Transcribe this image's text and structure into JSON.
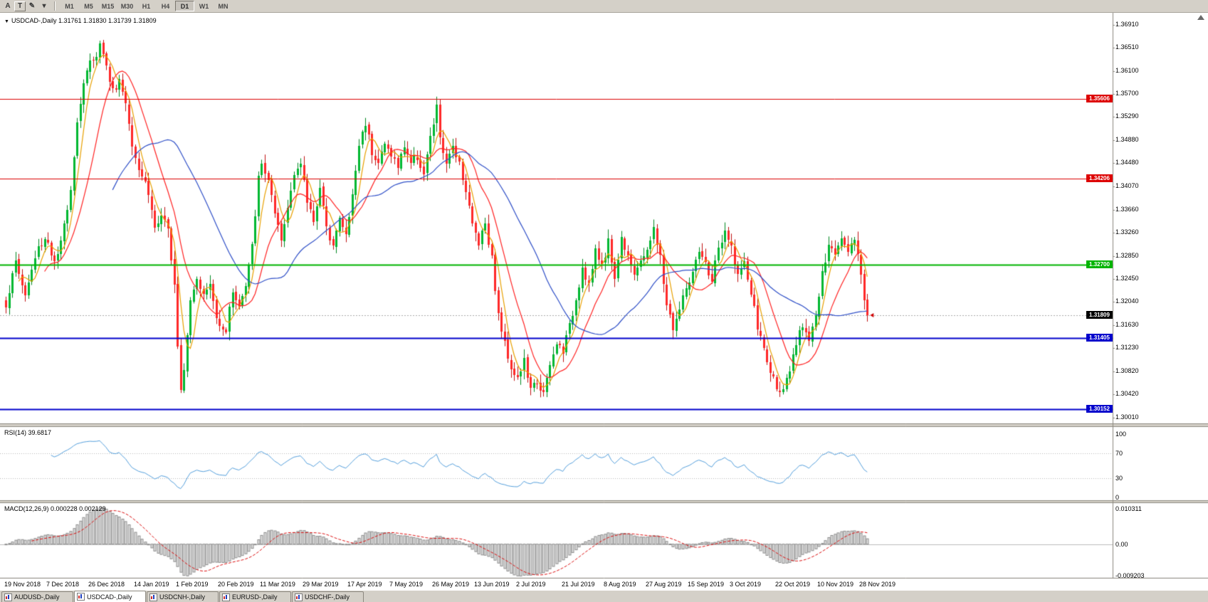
{
  "toolbar": {
    "icons": [
      {
        "name": "arrow-tool-icon",
        "glyph": "A",
        "boxed": false
      },
      {
        "name": "text-tool-icon",
        "glyph": "T",
        "boxed": true
      },
      {
        "name": "draw-tool-icon",
        "glyph": "✎",
        "boxed": false
      },
      {
        "name": "dropdown-icon",
        "glyph": "▾",
        "boxed": false
      }
    ],
    "timeframes": [
      "M1",
      "M5",
      "M15",
      "M30",
      "H1",
      "H4",
      "D1",
      "W1",
      "MN"
    ],
    "active_timeframe": "D1"
  },
  "chart": {
    "symbol_marker": "▼",
    "symbol_period": "USDCAD-,Daily",
    "ohlc": "1.31761 1.31830 1.31739 1.31809"
  },
  "price_axis": {
    "labels": [
      "1.36910",
      "1.36510",
      "1.36100",
      "1.35700",
      "1.35290",
      "1.34880",
      "1.34480",
      "1.34070",
      "1.33660",
      "1.33260",
      "1.32850",
      "1.32450",
      "1.32040",
      "1.31630",
      "1.31230",
      "1.30820",
      "1.30420",
      "1.30010"
    ]
  },
  "levels": [
    {
      "value": 1.35606,
      "label": "1.35606",
      "color": "#dd0000",
      "line_width": 1
    },
    {
      "value": 1.34206,
      "label": "1.34206",
      "color": "#dd0000",
      "line_width": 1
    },
    {
      "value": 1.327,
      "label": "1.32700",
      "color": "#00b400",
      "line_width": 2
    },
    {
      "value": 1.31405,
      "label": "1.31405",
      "color": "#0000cc",
      "line_width": 2
    },
    {
      "value": 1.30152,
      "label": "1.30152",
      "color": "#0000cc",
      "line_width": 2
    }
  ],
  "current_price": {
    "value": 1.31809,
    "label": "1.31809",
    "color": "#000000"
  },
  "time_axis": [
    {
      "text": "19 Nov 2018",
      "index": 0
    },
    {
      "text": "7 Dec 2018",
      "index": 13
    },
    {
      "text": "26 Dec 2018",
      "index": 26
    },
    {
      "text": "14 Jan 2019",
      "index": 40
    },
    {
      "text": "1 Feb 2019",
      "index": 53
    },
    {
      "text": "20 Feb 2019",
      "index": 66
    },
    {
      "text": "11 Mar 2019",
      "index": 79
    },
    {
      "text": "29 Mar 2019",
      "index": 92
    },
    {
      "text": "17 Apr 2019",
      "index": 106
    },
    {
      "text": "7 May 2019",
      "index": 119
    },
    {
      "text": "26 May 2019",
      "index": 132
    },
    {
      "text": "13 Jun 2019",
      "index": 145
    },
    {
      "text": "2 Jul 2019",
      "index": 158
    },
    {
      "text": "21 Jul 2019",
      "index": 172
    },
    {
      "text": "8 Aug 2019",
      "index": 185
    },
    {
      "text": "27 Aug 2019",
      "index": 198
    },
    {
      "text": "15 Sep 2019",
      "index": 211
    },
    {
      "text": "3 Oct 2019",
      "index": 224
    },
    {
      "text": "22 Oct 2019",
      "index": 238
    },
    {
      "text": "10 Nov 2019",
      "index": 251
    },
    {
      "text": "28 Nov 2019",
      "index": 264
    }
  ],
  "rsi": {
    "title": "RSI(14)",
    "value": "39.6817",
    "line_color": "#55a0dd",
    "level_lines": [
      30,
      70
    ],
    "scale": [
      {
        "text": "100",
        "value": 100
      },
      {
        "text": "70",
        "value": 70
      },
      {
        "text": "30",
        "value": 30
      },
      {
        "text": "0",
        "value": 0
      }
    ]
  },
  "macd": {
    "title": "MACD(12,26,9)",
    "values": "0.000228 0.002129",
    "bar_fill": "#e2e2e2",
    "bar_stroke": "#8c8c8c",
    "signal_color": "#dd1010",
    "scale": [
      {
        "text": "0.010311",
        "value": 0.010311
      },
      {
        "text": "0.00",
        "value": 0
      },
      {
        "text": "-0.009203",
        "value": -0.009203
      }
    ]
  },
  "tabs": [
    {
      "label": "AUDUSD-,Daily",
      "active": false
    },
    {
      "label": "USDCAD-,Daily",
      "active": true
    },
    {
      "label": "USDCNH-,Daily",
      "active": false
    },
    {
      "label": "EURUSD-,Daily",
      "active": false
    },
    {
      "label": "USDCHF-,Daily",
      "active": false
    }
  ],
  "chart_data": {
    "type": "candlestick",
    "symbol": "USDCAD-",
    "period": "Daily",
    "current_ohlc": {
      "open": 1.31761,
      "high": 1.3183,
      "low": 1.31739,
      "close": 1.31809
    },
    "price_range": {
      "max": 1.3697,
      "min": 1.2997
    },
    "num_candles": 267,
    "up_fill": "#00b830",
    "up_stroke": "#008820",
    "down_fill": "#ff2828",
    "down_stroke": "#c01010",
    "noise": {
      "seed": 1337,
      "close_amp": 0.0008,
      "wick_amp": 0.0013,
      "gap_amp": 0.00025
    },
    "close_anchors": [
      [
        0,
        1.32
      ],
      [
        2,
        1.325
      ],
      [
        3,
        1.3275
      ],
      [
        5,
        1.3235
      ],
      [
        6,
        1.3215
      ],
      [
        8,
        1.326
      ],
      [
        10,
        1.33
      ],
      [
        12,
        1.3315
      ],
      [
        13,
        1.331
      ],
      [
        15,
        1.327
      ],
      [
        17,
        1.3305
      ],
      [
        18,
        1.334
      ],
      [
        20,
        1.3405
      ],
      [
        22,
        1.352
      ],
      [
        24,
        1.359
      ],
      [
        26,
        1.3625
      ],
      [
        28,
        1.364
      ],
      [
        29,
        1.3655
      ],
      [
        30,
        1.3645
      ],
      [
        31,
        1.3615
      ],
      [
        33,
        1.3575
      ],
      [
        35,
        1.3595
      ],
      [
        37,
        1.3555
      ],
      [
        39,
        1.3485
      ],
      [
        41,
        1.344
      ],
      [
        43,
        1.3415
      ],
      [
        44,
        1.3395
      ],
      [
        46,
        1.3335
      ],
      [
        48,
        1.335
      ],
      [
        50,
        1.333
      ],
      [
        52,
        1.324
      ],
      [
        53,
        1.313
      ],
      [
        54,
        1.3055
      ],
      [
        55,
        1.309
      ],
      [
        57,
        1.321
      ],
      [
        59,
        1.325
      ],
      [
        61,
        1.3215
      ],
      [
        63,
        1.3235
      ],
      [
        65,
        1.3175
      ],
      [
        68,
        1.3155
      ],
      [
        70,
        1.3225
      ],
      [
        72,
        1.3195
      ],
      [
        74,
        1.323
      ],
      [
        76,
        1.33
      ],
      [
        78,
        1.342
      ],
      [
        79,
        1.3445
      ],
      [
        81,
        1.342
      ],
      [
        83,
        1.3355
      ],
      [
        85,
        1.331
      ],
      [
        87,
        1.337
      ],
      [
        89,
        1.3435
      ],
      [
        91,
        1.3445
      ],
      [
        93,
        1.338
      ],
      [
        95,
        1.335
      ],
      [
        97,
        1.3405
      ],
      [
        99,
        1.333
      ],
      [
        101,
        1.331
      ],
      [
        103,
        1.335
      ],
      [
        105,
        1.332
      ],
      [
        107,
        1.339
      ],
      [
        109,
        1.348
      ],
      [
        111,
        1.352
      ],
      [
        113,
        1.347
      ],
      [
        115,
        1.345
      ],
      [
        117,
        1.348
      ],
      [
        119,
        1.3465
      ],
      [
        121,
        1.344
      ],
      [
        123,
        1.348
      ],
      [
        125,
        1.345
      ],
      [
        127,
        1.346
      ],
      [
        129,
        1.343
      ],
      [
        131,
        1.349
      ],
      [
        133,
        1.3545
      ],
      [
        134,
        1.3495
      ],
      [
        136,
        1.344
      ],
      [
        138,
        1.348
      ],
      [
        140,
        1.345
      ],
      [
        142,
        1.34
      ],
      [
        144,
        1.334
      ],
      [
        146,
        1.331
      ],
      [
        148,
        1.3345
      ],
      [
        150,
        1.328
      ],
      [
        152,
        1.318
      ],
      [
        154,
        1.313
      ],
      [
        156,
        1.309
      ],
      [
        158,
        1.307
      ],
      [
        160,
        1.31
      ],
      [
        162,
        1.3048
      ],
      [
        164,
        1.3065
      ],
      [
        166,
        1.3042
      ],
      [
        168,
        1.309
      ],
      [
        170,
        1.313
      ],
      [
        172,
        1.312
      ],
      [
        174,
        1.316
      ],
      [
        176,
        1.321
      ],
      [
        178,
        1.3265
      ],
      [
        180,
        1.3235
      ],
      [
        182,
        1.329
      ],
      [
        184,
        1.327
      ],
      [
        186,
        1.331
      ],
      [
        188,
        1.3245
      ],
      [
        190,
        1.3315
      ],
      [
        192,
        1.329
      ],
      [
        194,
        1.3255
      ],
      [
        196,
        1.327
      ],
      [
        198,
        1.33
      ],
      [
        200,
        1.333
      ],
      [
        202,
        1.328
      ],
      [
        204,
        1.32
      ],
      [
        206,
        1.3158
      ],
      [
        208,
        1.319
      ],
      [
        210,
        1.323
      ],
      [
        212,
        1.3252
      ],
      [
        214,
        1.329
      ],
      [
        216,
        1.327
      ],
      [
        218,
        1.3242
      ],
      [
        220,
        1.33
      ],
      [
        222,
        1.3322
      ],
      [
        224,
        1.33
      ],
      [
        226,
        1.3252
      ],
      [
        228,
        1.327
      ],
      [
        230,
        1.322
      ],
      [
        232,
        1.316
      ],
      [
        234,
        1.312
      ],
      [
        236,
        1.308
      ],
      [
        238,
        1.3058
      ],
      [
        240,
        1.3045
      ],
      [
        242,
        1.308
      ],
      [
        244,
        1.313
      ],
      [
        246,
        1.3165
      ],
      [
        248,
        1.3142
      ],
      [
        250,
        1.318
      ],
      [
        252,
        1.325
      ],
      [
        254,
        1.33
      ],
      [
        256,
        1.329
      ],
      [
        258,
        1.3322
      ],
      [
        260,
        1.33
      ],
      [
        262,
        1.3312
      ],
      [
        263,
        1.329
      ],
      [
        264,
        1.3255
      ],
      [
        265,
        1.321
      ],
      [
        266,
        1.31809
      ]
    ],
    "moving_averages": [
      {
        "period": 5,
        "color": "#e8a000"
      },
      {
        "period": 13,
        "color": "#ff2222"
      },
      {
        "period": 34,
        "color": "#3050c8"
      }
    ],
    "indicators": {
      "rsi": {
        "period": 14,
        "current": 39.6817,
        "levels": [
          30,
          70
        ]
      },
      "macd": {
        "fast": 12,
        "slow": 26,
        "signal": 9,
        "current_macd": 0.000228,
        "current_signal": 0.002129,
        "range": [
          -0.009203,
          0.010311
        ]
      }
    }
  }
}
